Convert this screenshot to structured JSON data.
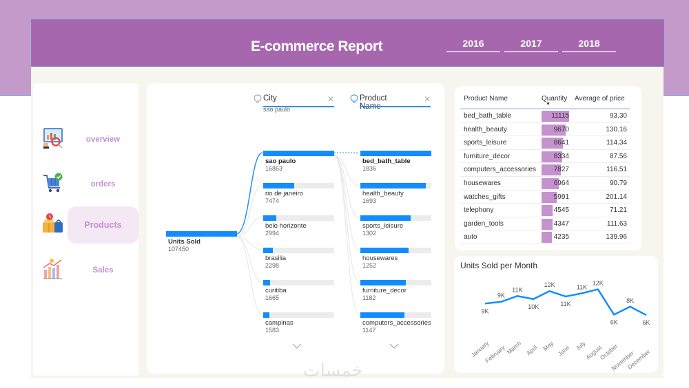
{
  "header": {
    "title": "E-commerce Report",
    "years": [
      "2016",
      "2017",
      "2018"
    ]
  },
  "colors": {
    "top_band": "#C49ACB",
    "header": "#A667AF",
    "canvas": "#F7F6EE",
    "accent_blue": "#118DFF",
    "nav_text": "#C591CE",
    "quantity_bar": "#C591CE"
  },
  "sidebar": {
    "items": [
      {
        "label": "overview",
        "icon": "analytics-magnifier-icon",
        "active": false
      },
      {
        "label": "orders",
        "icon": "shopping-cart-check-icon",
        "active": false
      },
      {
        "label": "Products",
        "icon": "product-box-bag-icon",
        "active": true
      },
      {
        "label": "Sales",
        "icon": "sales-growth-chart-icon",
        "active": false
      }
    ]
  },
  "decomposition_tree": {
    "root": {
      "label": "Units Sold",
      "value": "107450"
    },
    "levels": [
      {
        "label": "City",
        "selected": "sao paulo"
      },
      {
        "label": "Product Name",
        "selected": ""
      }
    ],
    "city_nodes": [
      {
        "name": "sao paulo",
        "value": "16863",
        "pct": 100
      },
      {
        "name": "rio de janeiro",
        "value": "7474",
        "pct": 44
      },
      {
        "name": "belo horizonte",
        "value": "2994",
        "pct": 18
      },
      {
        "name": "brasilia",
        "value": "2298",
        "pct": 14
      },
      {
        "name": "curitiba",
        "value": "1665",
        "pct": 10
      },
      {
        "name": "campinas",
        "value": "1583",
        "pct": 9
      }
    ],
    "product_nodes": [
      {
        "name": "bed_bath_table",
        "value": "1836",
        "pct": 100
      },
      {
        "name": "health_beauty",
        "value": "1693",
        "pct": 92
      },
      {
        "name": "sports_leisure",
        "value": "1302",
        "pct": 71
      },
      {
        "name": "housewares",
        "value": "1252",
        "pct": 68
      },
      {
        "name": "furniture_decor",
        "value": "1182",
        "pct": 64
      },
      {
        "name": "computers_accessories",
        "value": "1147",
        "pct": 62
      }
    ]
  },
  "product_table": {
    "columns": [
      "Product Name",
      "Quantity",
      "Average of price"
    ],
    "sort_indicator": "▼",
    "rows": [
      {
        "name": "bed_bath_table",
        "quantity": "11115",
        "avg_price": "93.30",
        "pct": 100
      },
      {
        "name": "health_beauty",
        "quantity": "9670",
        "avg_price": "130.16",
        "pct": 87
      },
      {
        "name": "sports_leisure",
        "quantity": "8641",
        "avg_price": "114.34",
        "pct": 78
      },
      {
        "name": "furniture_decor",
        "quantity": "8334",
        "avg_price": "87.56",
        "pct": 75
      },
      {
        "name": "computers_accessories",
        "quantity": "7827",
        "avg_price": "116.51",
        "pct": 70
      },
      {
        "name": "housewares",
        "quantity": "6964",
        "avg_price": "90.79",
        "pct": 63
      },
      {
        "name": "watches_gifts",
        "quantity": "5991",
        "avg_price": "201.14",
        "pct": 54
      },
      {
        "name": "telephony",
        "quantity": "4545",
        "avg_price": "71.21",
        "pct": 41
      },
      {
        "name": "garden_tools",
        "quantity": "4347",
        "avg_price": "111.63",
        "pct": 39
      },
      {
        "name": "auto",
        "quantity": "4235",
        "avg_price": "139.96",
        "pct": 38
      }
    ]
  },
  "chart_data": {
    "type": "line",
    "title": "Units Sold per Month",
    "categories": [
      "January",
      "February",
      "March",
      "April",
      "May",
      "June",
      "July",
      "August",
      "October",
      "November",
      "December"
    ],
    "values": [
      8900,
      9300,
      10600,
      9900,
      11700,
      10500,
      11200,
      12100,
      6400,
      8200,
      6300
    ],
    "data_labels": [
      "9K",
      "9K",
      "11K",
      "10K",
      "12K",
      "11K",
      "11K",
      "12K",
      "6K",
      "8K",
      "6K"
    ],
    "xlabel": "",
    "ylabel": "",
    "grid": false,
    "legend": "none"
  },
  "watermark": "خمسات"
}
